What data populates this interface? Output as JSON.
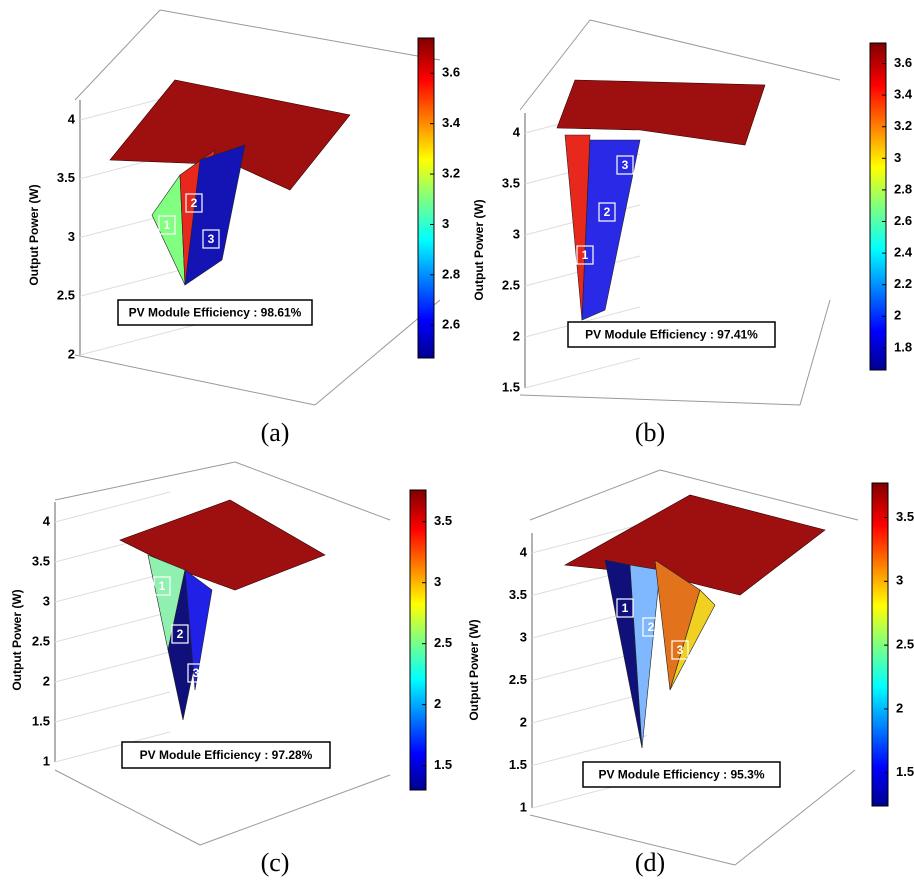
{
  "chart_data": [
    {
      "type": "surface",
      "zlabel": "Output Power (W)",
      "zlim": [
        2,
        4
      ],
      "zticks": [
        2,
        2.5,
        3,
        3.5,
        4
      ],
      "clim": [
        2.47,
        3.74
      ],
      "cticks": [
        2.6,
        2.8,
        3,
        3.2,
        3.4,
        3.6
      ],
      "annotation": "PV Module Efficiency : 98.61%",
      "caption": "(a)",
      "markers": [
        "1",
        "2",
        "3"
      ]
    },
    {
      "type": "surface",
      "zlabel": "Output Power (W)",
      "zlim": [
        1.5,
        4
      ],
      "zticks": [
        1.5,
        2,
        2.5,
        3,
        3.5,
        4
      ],
      "clim": [
        1.66,
        3.73
      ],
      "cticks": [
        1.8,
        2,
        2.2,
        2.4,
        2.6,
        2.8,
        3,
        3.2,
        3.4,
        3.6
      ],
      "annotation": "PV Module Efficiency : 97.41%",
      "caption": "(b)",
      "markers": [
        "1",
        "2",
        "3"
      ]
    },
    {
      "type": "surface",
      "zlabel": "Output Power (W)",
      "zlim": [
        1,
        4
      ],
      "zticks": [
        1,
        1.5,
        2,
        2.5,
        3,
        3.5,
        4
      ],
      "clim": [
        1.3,
        3.76
      ],
      "cticks": [
        1.5,
        2,
        2.5,
        3,
        3.5
      ],
      "annotation": "PV Module Efficiency : 97.28%",
      "caption": "(c)",
      "markers": [
        "1",
        "2",
        "3"
      ]
    },
    {
      "type": "surface",
      "zlabel": "Output Power (W)",
      "zlim": [
        1,
        4
      ],
      "zticks": [
        1,
        1.5,
        2,
        2.5,
        3,
        3.5,
        4
      ],
      "clim": [
        1.24,
        3.77
      ],
      "cticks": [
        1.5,
        2,
        2.5,
        3,
        3.5
      ],
      "annotation": "PV Module Efficiency : 95.3%",
      "caption": "(d)",
      "markers": [
        "1",
        "2",
        "3"
      ]
    }
  ]
}
